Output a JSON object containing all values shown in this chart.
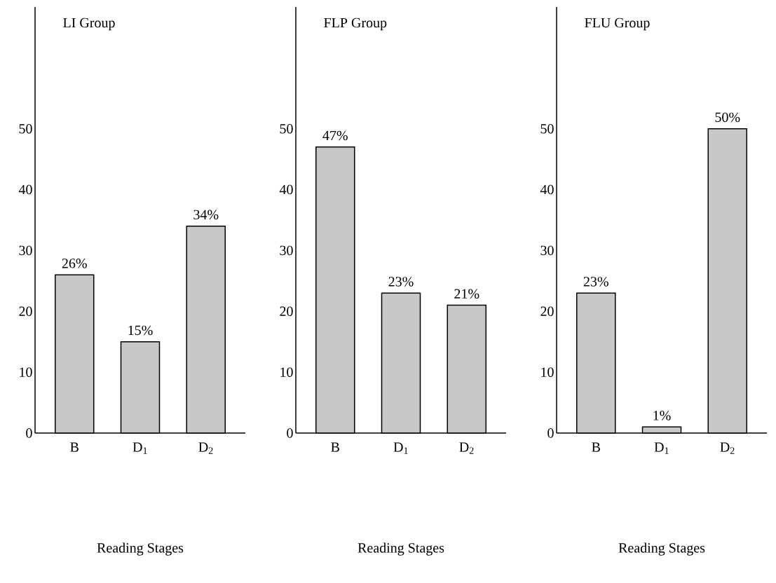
{
  "chart_data": [
    {
      "type": "bar",
      "title": "LI  Group",
      "xlabel": "Reading  Stages",
      "categories": [
        "B",
        "D$_{1}$",
        "D$_{2}$"
      ],
      "values": [
        26,
        15,
        34
      ],
      "value_labels": [
        "26%",
        "15%",
        "34%"
      ],
      "color": "#c8c8c8",
      "ylim": [
        0,
        70
      ],
      "yticks": [
        0,
        10,
        20,
        30,
        40,
        50
      ]
    },
    {
      "type": "bar",
      "title": "FLP  Group",
      "xlabel": "Reading  Stages",
      "categories": [
        "B",
        "D$_{1}$",
        "D$_{2}$"
      ],
      "values": [
        47,
        23,
        21
      ],
      "value_labels": [
        "47%",
        "23%",
        "21%"
      ],
      "color": "#c8c8c8",
      "ylim": [
        0,
        70
      ],
      "yticks": [
        0,
        10,
        20,
        30,
        40,
        50
      ]
    },
    {
      "type": "bar",
      "title": "FLU  Group",
      "xlabel": "Reading  Stages",
      "categories": [
        "B",
        "D$_{1}$",
        "D$_{2}$"
      ],
      "values": [
        23,
        1,
        50
      ],
      "value_labels": [
        "23%",
        "1%",
        "50%"
      ],
      "color": "#c8c8c8",
      "ylim": [
        0,
        70
      ],
      "yticks": [
        0,
        10,
        20,
        30,
        40,
        50
      ]
    }
  ]
}
